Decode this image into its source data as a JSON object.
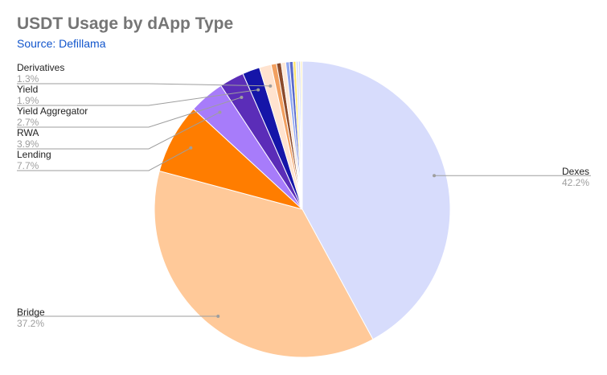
{
  "chart_data": {
    "type": "pie",
    "title": "USDT Usage by dApp Type",
    "subtitle": "Source: Defillama",
    "slices": [
      {
        "label": "Dexes",
        "value": 42.2,
        "value_label": "42.2%",
        "color": "#d7dcfc"
      },
      {
        "label": "Bridge",
        "value": 37.2,
        "value_label": "37.2%",
        "color": "#ffc999"
      },
      {
        "label": "Lending",
        "value": 7.7,
        "value_label": "7.7%",
        "color": "#ff7d00"
      },
      {
        "label": "RWA",
        "value": 3.9,
        "value_label": "3.9%",
        "color": "#a77cfa"
      },
      {
        "label": "Yield Aggregator",
        "value": 2.7,
        "value_label": "2.7%",
        "color": "#5b2db8"
      },
      {
        "label": "Yield",
        "value": 1.9,
        "value_label": "1.9%",
        "color": "#1515a8"
      },
      {
        "label": "Derivatives",
        "value": 1.3,
        "value_label": "1.3%",
        "color": "#ffe3cf"
      },
      {
        "label": "",
        "value": 0.6,
        "color": "#f2a060"
      },
      {
        "label": "",
        "value": 0.5,
        "color": "#8b4a2a"
      },
      {
        "label": "",
        "value": 0.5,
        "color": "#ffe8d6"
      },
      {
        "label": "",
        "value": 0.4,
        "color": "#8ea6f0"
      },
      {
        "label": "",
        "value": 0.4,
        "color": "#5a6acb"
      },
      {
        "label": "",
        "value": 0.3,
        "color": "#ffe46b"
      },
      {
        "label": "",
        "value": 0.3,
        "color": "#dfe4fb"
      },
      {
        "label": "",
        "value": 0.2,
        "color": "#c9d2f7"
      },
      {
        "label": "",
        "value": 0.2,
        "color": "#fff0c0"
      }
    ],
    "legend": "none"
  }
}
